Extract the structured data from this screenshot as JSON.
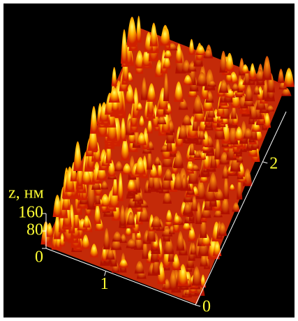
{
  "chart_data": {
    "type": "surface",
    "zlabel": "z, нм",
    "xlim": [
      0,
      2.5
    ],
    "xticks": [
      1
    ],
    "ylim": [
      0,
      2.7
    ],
    "yticks": [
      0,
      2
    ],
    "zlim": [
      0,
      160
    ],
    "zticks": [
      0,
      80,
      160
    ],
    "axis_color": "#ffffff",
    "label_color": "#ffff33"
  }
}
